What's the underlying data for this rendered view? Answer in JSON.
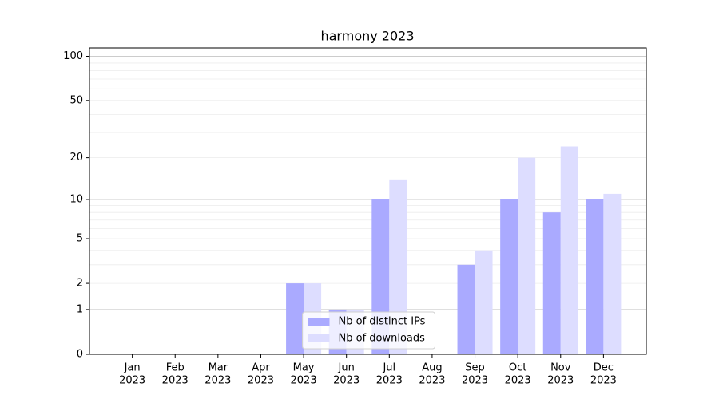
{
  "chart_data": {
    "type": "bar",
    "title": "harmony 2023",
    "categories": [
      [
        "Jan",
        "2023"
      ],
      [
        "Feb",
        "2023"
      ],
      [
        "Mar",
        "2023"
      ],
      [
        "Apr",
        "2023"
      ],
      [
        "May",
        "2023"
      ],
      [
        "Jun",
        "2023"
      ],
      [
        "Jul",
        "2023"
      ],
      [
        "Aug",
        "2023"
      ],
      [
        "Sep",
        "2023"
      ],
      [
        "Oct",
        "2023"
      ],
      [
        "Nov",
        "2023"
      ],
      [
        "Dec",
        "2023"
      ]
    ],
    "series": [
      {
        "name": "Nb of distinct IPs",
        "color": "#aaaaff",
        "values": [
          0,
          0,
          0,
          0,
          2,
          1,
          10,
          0,
          3,
          10,
          8,
          10
        ]
      },
      {
        "name": "Nb of downloads",
        "color": "#ddddff",
        "values": [
          0,
          0,
          0,
          0,
          2,
          1,
          14,
          0,
          4,
          20,
          24,
          11
        ]
      }
    ],
    "yscale": "log1p",
    "ylim": [
      0,
      114
    ],
    "yticks": [
      0,
      1,
      2,
      5,
      10,
      20,
      50,
      100
    ],
    "minor_grid": [
      2,
      3,
      4,
      5,
      6,
      7,
      8,
      9,
      20,
      30,
      40,
      50,
      60,
      70,
      80,
      90
    ],
    "grid": true,
    "legend": "lower center"
  }
}
